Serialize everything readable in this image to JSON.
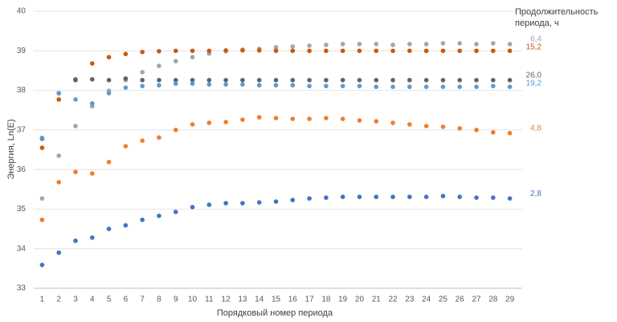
{
  "chart_data": {
    "type": "scatter",
    "y_label": "Энергия, Ln(E)",
    "x_label": "Порядковый номер периода",
    "legend_title": "Продолжительность периода, ч",
    "x": [
      1,
      2,
      3,
      4,
      5,
      6,
      7,
      8,
      9,
      10,
      11,
      12,
      13,
      14,
      15,
      16,
      17,
      18,
      19,
      20,
      21,
      22,
      23,
      24,
      25,
      26,
      27,
      28,
      29
    ],
    "xlim": [
      0.5,
      29.5
    ],
    "xticks": [
      1,
      2,
      3,
      4,
      5,
      6,
      7,
      8,
      9,
      10,
      11,
      12,
      13,
      14,
      15,
      16,
      17,
      18,
      19,
      20,
      21,
      22,
      23,
      24,
      25,
      26,
      27,
      28,
      29
    ],
    "ylim": [
      33,
      40
    ],
    "yticks": [
      33,
      34,
      35,
      36,
      37,
      38,
      39,
      40
    ],
    "grid": true,
    "series": [
      {
        "name": "6,4",
        "color": "#a5a5a5",
        "values": [
          35.27,
          36.35,
          37.1,
          37.6,
          37.99,
          38.26,
          38.46,
          38.62,
          38.74,
          38.84,
          38.93,
          38.99,
          39.03,
          39.05,
          39.09,
          39.11,
          39.13,
          39.15,
          39.17,
          39.17,
          39.17,
          39.15,
          39.17,
          39.17,
          39.19,
          39.19,
          39.17,
          39.19,
          39.17
        ]
      },
      {
        "name": "15,2",
        "color": "#c55a11",
        "values": [
          36.55,
          37.77,
          38.28,
          38.68,
          38.84,
          38.92,
          38.97,
          38.99,
          39.0,
          39.0,
          39.0,
          39.01,
          39.01,
          39.01,
          39.0,
          39.0,
          39.0,
          39.0,
          39.0,
          39.0,
          39.0,
          39.0,
          39.0,
          39.0,
          39.0,
          39.0,
          39.0,
          39.0,
          39.0
        ]
      },
      {
        "name": "26,0",
        "color": "#636363",
        "values": [
          36.78,
          37.93,
          38.26,
          38.28,
          38.26,
          38.3,
          38.26,
          38.26,
          38.26,
          38.26,
          38.26,
          38.26,
          38.26,
          38.26,
          38.26,
          38.26,
          38.26,
          38.26,
          38.26,
          38.26,
          38.26,
          38.26,
          38.26,
          38.26,
          38.26,
          38.26,
          38.26,
          38.26,
          38.26
        ]
      },
      {
        "name": "19,2",
        "color": "#5b9bd5",
        "values": [
          36.8,
          37.93,
          37.77,
          37.67,
          37.93,
          38.07,
          38.11,
          38.13,
          38.17,
          38.17,
          38.15,
          38.15,
          38.15,
          38.13,
          38.13,
          38.13,
          38.11,
          38.11,
          38.11,
          38.11,
          38.09,
          38.09,
          38.09,
          38.09,
          38.09,
          38.09,
          38.09,
          38.11,
          38.09
        ]
      },
      {
        "name": "4,8",
        "color": "#ed7d31",
        "values": [
          34.73,
          35.68,
          35.94,
          35.9,
          36.19,
          36.59,
          36.73,
          36.81,
          37.0,
          37.14,
          37.18,
          37.2,
          37.26,
          37.32,
          37.3,
          37.28,
          37.28,
          37.3,
          37.28,
          37.24,
          37.22,
          37.18,
          37.14,
          37.1,
          37.08,
          37.04,
          37.0,
          36.94,
          36.92
        ]
      },
      {
        "name": "2,8",
        "color": "#4472c4",
        "values": [
          33.59,
          33.9,
          34.2,
          34.28,
          34.5,
          34.59,
          34.73,
          34.83,
          34.93,
          35.05,
          35.11,
          35.15,
          35.15,
          35.17,
          35.19,
          35.23,
          35.27,
          35.29,
          35.31,
          35.31,
          35.31,
          35.31,
          35.31,
          35.31,
          35.33,
          35.31,
          35.29,
          35.29,
          35.27
        ]
      }
    ]
  }
}
